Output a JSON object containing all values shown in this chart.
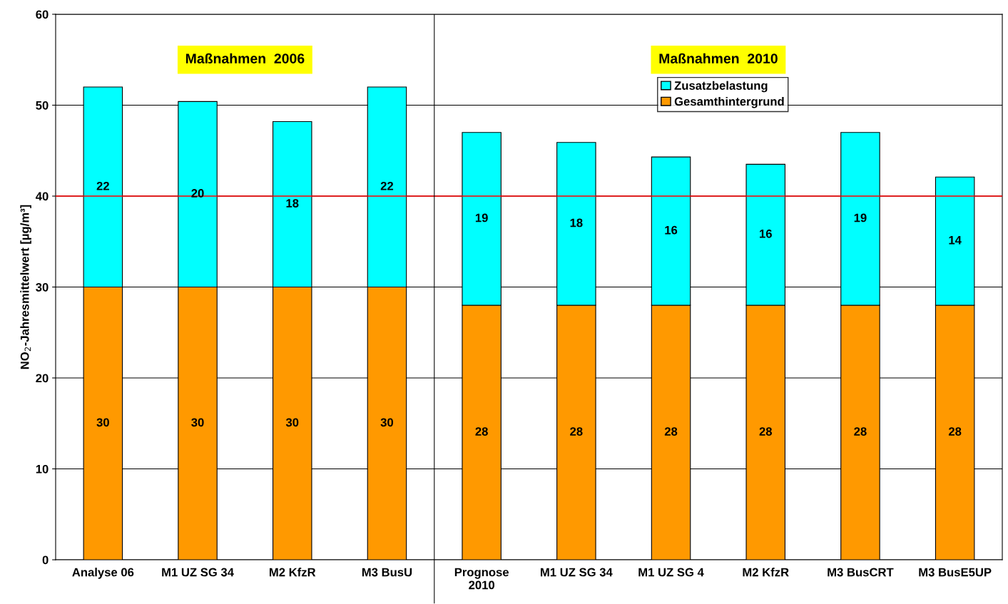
{
  "chart_data": {
    "type": "bar",
    "stacked": true,
    "ylabel": "NO$_{2}$-Jahresmittelwert [µg/m³]",
    "categories": [
      "Analyse 06",
      "M1 UZ SG 34",
      "M2 KfzR",
      "M3 BusU",
      "Prognose\n2010",
      "M1 UZ SG 34",
      "M1 UZ SG 4",
      "M2 KfzR",
      "M3 BusCRT",
      "M3 BusE5UP"
    ],
    "series": [
      {
        "name": "Gesamthintergrund",
        "color": "#ff9900",
        "values": [
          30,
          30,
          30,
          30,
          28,
          28,
          28,
          28,
          28,
          28
        ],
        "value_labels": [
          "30",
          "30",
          "30",
          "30",
          "28",
          "28",
          "28",
          "28",
          "28",
          "28"
        ]
      },
      {
        "name": "Zusatzbelastung",
        "color": "#00ffff",
        "values": [
          22,
          20.4,
          18.2,
          22,
          19,
          17.9,
          16.3,
          15.5,
          19,
          14.1
        ],
        "value_labels": [
          "22",
          "20",
          "18",
          "22",
          "19",
          "18",
          "16",
          "16",
          "19",
          "14"
        ]
      }
    ],
    "ylim": [
      0,
      60
    ],
    "yticks": [
      0,
      10,
      20,
      30,
      40,
      50,
      60
    ],
    "grid": "y",
    "legend": "top right",
    "ref_lines": [
      {
        "axis": "y",
        "value": 40,
        "color": "#ff0000"
      }
    ],
    "annotations": [
      "Maßnahmen  2006",
      "Maßnahmen  2010"
    ]
  }
}
